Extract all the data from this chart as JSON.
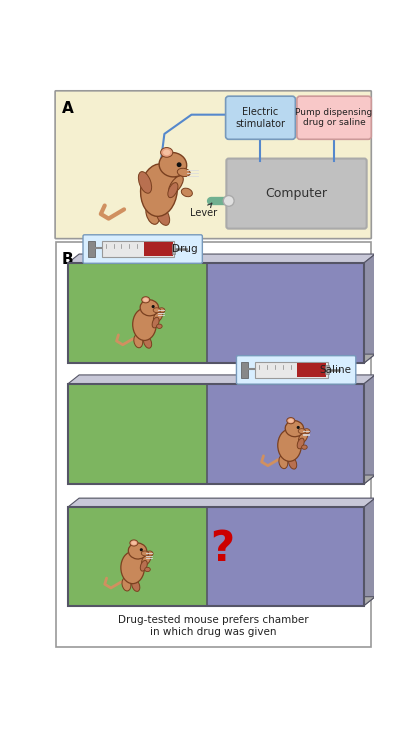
{
  "fig_width": 4.16,
  "fig_height": 7.31,
  "dpi": 100,
  "panel_A_bg": "#f5f0d0",
  "border_color": "#999999",
  "computer_color": "#c0c0c0",
  "computer_border": "#aaaaaa",
  "elec_stim_color": "#b8d8f0",
  "pump_color": "#f8c8c8",
  "box_border_es": "#7799bb",
  "box_border_pump": "#cc9999",
  "label_A": "A",
  "label_B": "B",
  "lever_label": "Lever",
  "computer_label": "Computer",
  "elec_stim_label": "Electric\nstimulator",
  "pump_label": "Pump dispensing\ndrug or saline",
  "drug_label": "Drug",
  "saline_label": "Saline",
  "question_color": "#cc0000",
  "caption": "Drug-tested mouse prefers chamber\nin which drug was given",
  "green_chamber": "#7db560",
  "green_chamber_dark": "#5a9040",
  "purple_chamber": "#8888bb",
  "purple_chamber_dark": "#6666aa",
  "chamber_border": "#555566",
  "syringe_bg": "#d8eeff",
  "syringe_border": "#7799bb",
  "wire_color": "#5588cc",
  "mouse_body": "#c8885a",
  "mouse_dark": "#7a4020",
  "mouse_ear": "#e8a080",
  "mouse_ear_inner": "#f5c0a0"
}
